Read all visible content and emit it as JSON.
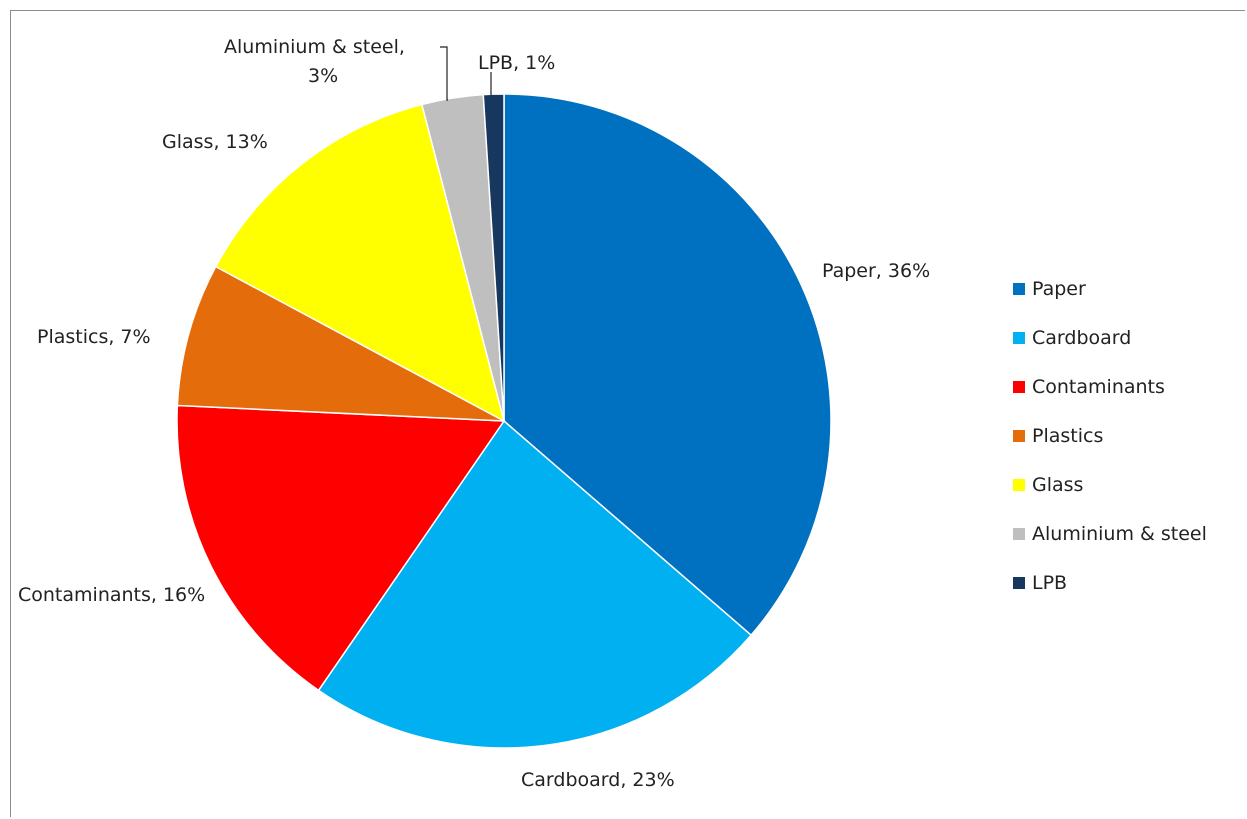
{
  "chart_data": {
    "type": "pie",
    "title": "",
    "slices": [
      {
        "label": "Paper",
        "value": 36,
        "data_label": "Paper, 36%",
        "color": "#0070c0"
      },
      {
        "label": "Cardboard",
        "value": 23,
        "data_label": "Cardboard, 23%",
        "color": "#00b0f0"
      },
      {
        "label": "Contaminants",
        "value": 16,
        "data_label": "Contaminants, 16%",
        "color": "#ff0000"
      },
      {
        "label": "Plastics",
        "value": 7,
        "data_label": "Plastics, 7%",
        "color": "#e46c0a"
      },
      {
        "label": "Glass",
        "value": 13,
        "data_label": "Glass, 13%",
        "color": "#ffff00"
      },
      {
        "label": "Aluminium & steel",
        "value": 3,
        "data_label": "Aluminium & steel, 3%",
        "color": "#bfbfbf"
      },
      {
        "label": "LPB",
        "value": 1,
        "data_label": "LPB, 1%",
        "color": "#17375e"
      }
    ],
    "legend_position": "right",
    "start_angle_deg": 0,
    "direction": "clockwise"
  }
}
